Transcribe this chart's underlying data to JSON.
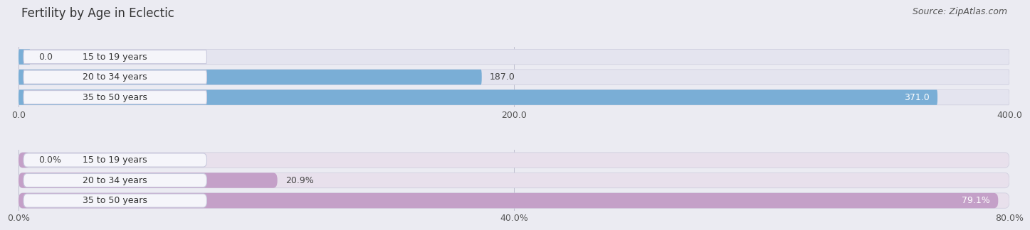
{
  "title": "Fertility by Age in Eclectic",
  "source": "Source: ZipAtlas.com",
  "top_chart": {
    "categories": [
      "15 to 19 years",
      "20 to 34 years",
      "35 to 50 years"
    ],
    "values": [
      0.0,
      187.0,
      371.0
    ],
    "value_labels": [
      "0.0",
      "187.0",
      "371.0"
    ],
    "value_label_inside": [
      false,
      false,
      true
    ],
    "xlim": [
      0,
      400
    ],
    "xticks": [
      0.0,
      200.0,
      400.0
    ],
    "xtick_labels": [
      "0.0",
      "200.0",
      "400.0"
    ],
    "bar_color": "#7aaed6",
    "bar_bg_color": "#e4e4ef",
    "label_bg_color": "#f5f5fa",
    "label_border_color": "#c8c8dd"
  },
  "bottom_chart": {
    "categories": [
      "15 to 19 years",
      "20 to 34 years",
      "35 to 50 years"
    ],
    "values": [
      0.0,
      20.9,
      79.1
    ],
    "value_labels": [
      "0.0%",
      "20.9%",
      "79.1%"
    ],
    "value_label_inside": [
      false,
      false,
      true
    ],
    "xlim": [
      0,
      80
    ],
    "xticks": [
      0.0,
      40.0,
      80.0
    ],
    "xtick_labels": [
      "0.0%",
      "40.0%",
      "80.0%"
    ],
    "bar_color": "#c4a0c8",
    "bar_bg_color": "#e8e0ec",
    "label_bg_color": "#f5f5fa",
    "label_border_color": "#c8c8dd"
  },
  "fig_bg_color": "#ebebf2",
  "label_fontsize": 9,
  "value_fontsize": 9,
  "title_fontsize": 12,
  "source_fontsize": 9
}
